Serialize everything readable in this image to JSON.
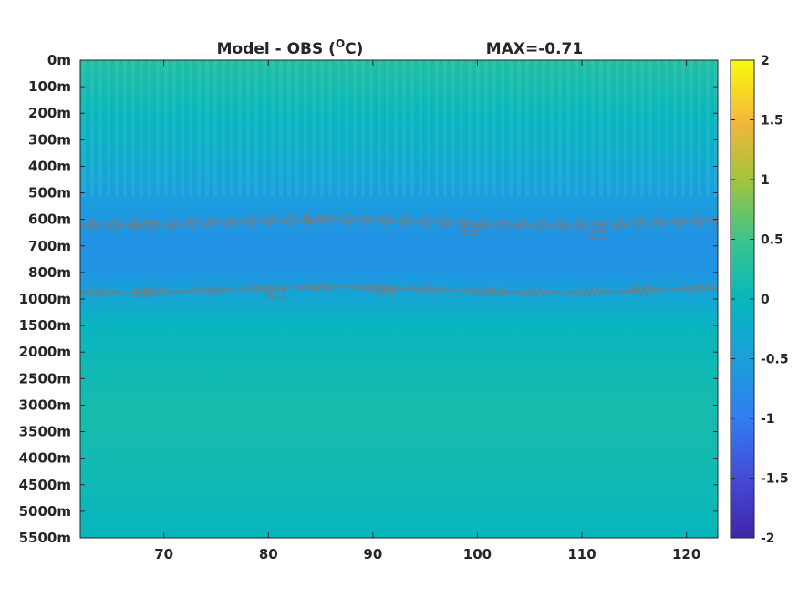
{
  "chart_data": {
    "type": "heatmap",
    "title": "Model - OBS (",
    "title_superscript": "O",
    "title_suffix": "C)",
    "max_label": "MAX=-0.71",
    "x_ticks": [
      70,
      80,
      90,
      100,
      110,
      120
    ],
    "x_tick_labels": [
      "70",
      "80",
      "90",
      "100",
      "110",
      "120"
    ],
    "xlim": [
      62,
      123
    ],
    "y_tick_labels": [
      "0m",
      "100m",
      "200m",
      "300m",
      "400m",
      "500m",
      "600m",
      "700m",
      "800m",
      "1000m",
      "1500m",
      "2000m",
      "2500m",
      "3000m",
      "3500m",
      "4000m",
      "4500m",
      "5000m",
      "5500m"
    ],
    "depth_profile": [
      {
        "depth": "0m",
        "value": 0.25
      },
      {
        "depth": "100m",
        "value": 0.15
      },
      {
        "depth": "200m",
        "value": 0.0
      },
      {
        "depth": "300m",
        "value": -0.15
      },
      {
        "depth": "400m",
        "value": -0.3
      },
      {
        "depth": "500m",
        "value": -0.5
      },
      {
        "depth": "600m",
        "value": -0.6
      },
      {
        "depth": "700m",
        "value": -0.71
      },
      {
        "depth": "800m",
        "value": -0.65
      },
      {
        "depth": "1000m",
        "value": -0.35
      },
      {
        "depth": "1500m",
        "value": -0.05
      },
      {
        "depth": "2000m",
        "value": 0.05
      },
      {
        "depth": "2500m",
        "value": 0.1
      },
      {
        "depth": "3000m",
        "value": 0.15
      },
      {
        "depth": "3500m",
        "value": 0.15
      },
      {
        "depth": "4000m",
        "value": 0.12
      },
      {
        "depth": "4500m",
        "value": 0.08
      },
      {
        "depth": "5000m",
        "value": 0.04
      },
      {
        "depth": "5500m",
        "value": 0.0
      }
    ],
    "contour_levels": [
      -0.5
    ],
    "contour_label": "-0.5",
    "colorbar": {
      "range": [
        -2,
        2
      ],
      "ticks": [
        2,
        1.5,
        1,
        0.5,
        0,
        -0.5,
        -1,
        -1.5,
        -2
      ],
      "tick_labels": [
        "2",
        "1.5",
        "1",
        "0.5",
        "0",
        "-0.5",
        "-1",
        "-1.5",
        "-2"
      ],
      "colormap": "parula"
    }
  }
}
